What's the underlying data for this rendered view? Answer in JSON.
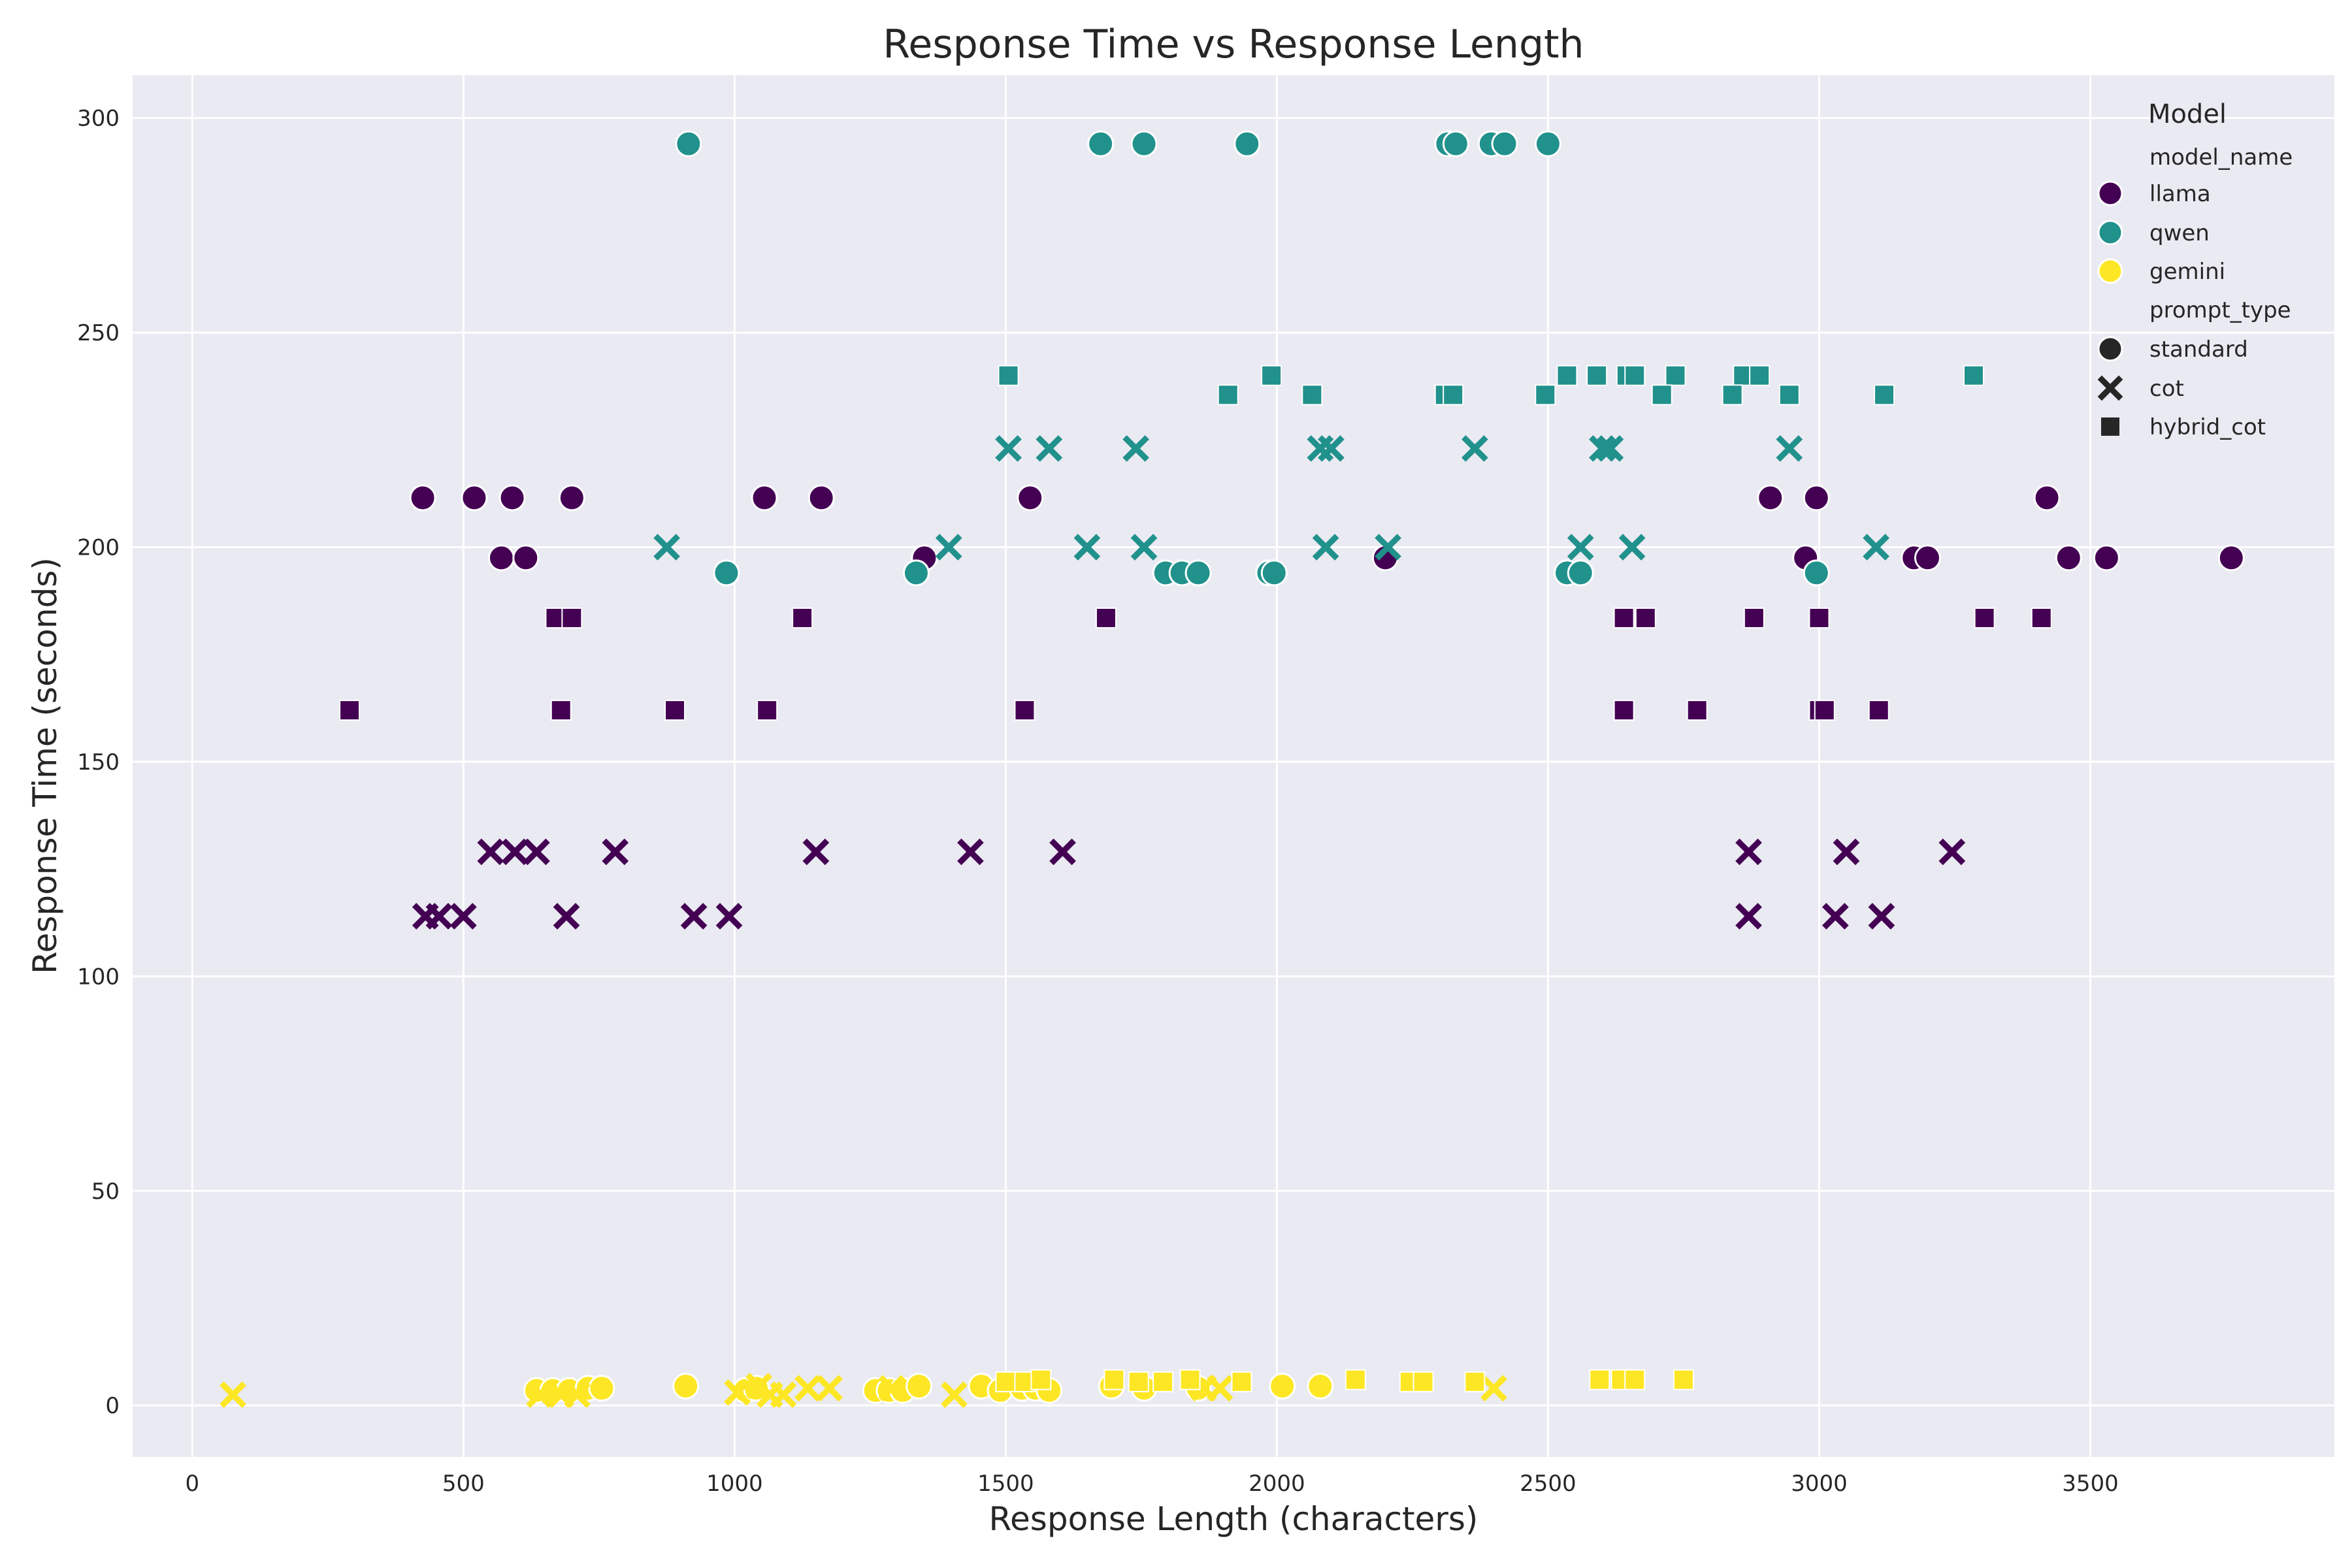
{
  "chart_data": {
    "type": "scatter",
    "title": "Response Time vs Response Length",
    "xlabel": "Response Length (characters)",
    "ylabel": "Response Time (seconds)",
    "xlim": [
      -110,
      3950
    ],
    "ylim": [
      -12,
      310
    ],
    "xticks": [
      0,
      500,
      1000,
      1500,
      2000,
      2500,
      3000,
      3500
    ],
    "yticks": [
      0,
      50,
      100,
      150,
      200,
      250,
      300
    ],
    "grid": true,
    "legend": {
      "title": "Model",
      "placement": "top-right",
      "hue_header": "model_name",
      "style_header": "prompt_type",
      "hue": [
        {
          "name": "llama",
          "color": "#440154"
        },
        {
          "name": "qwen",
          "color": "#21918c"
        },
        {
          "name": "gemini",
          "color": "#fde725"
        }
      ],
      "style": [
        {
          "name": "standard",
          "marker": "circle"
        },
        {
          "name": "cot",
          "marker": "x"
        },
        {
          "name": "hybrid_cot",
          "marker": "square"
        }
      ]
    },
    "series": [
      {
        "model": "llama",
        "prompt_type": "standard",
        "points": [
          [
            425,
            211.5
          ],
          [
            520,
            211.5
          ],
          [
            590,
            211.5
          ],
          [
            700,
            211.5
          ],
          [
            1055,
            211.5
          ],
          [
            1160,
            211.5
          ],
          [
            1545,
            211.5
          ],
          [
            2910,
            211.5
          ],
          [
            2995,
            211.5
          ],
          [
            3420,
            211.5
          ],
          [
            570,
            197.5
          ],
          [
            615,
            197.5
          ],
          [
            1350,
            197.5
          ],
          [
            2200,
            197.5
          ],
          [
            2975,
            197.5
          ],
          [
            3175,
            197.5
          ],
          [
            3200,
            197.5
          ],
          [
            3460,
            197.5
          ],
          [
            3530,
            197.5
          ],
          [
            3760,
            197.5
          ]
        ]
      },
      {
        "model": "llama",
        "prompt_type": "cot",
        "points": [
          [
            550,
            129
          ],
          [
            595,
            129
          ],
          [
            635,
            129
          ],
          [
            780,
            129
          ],
          [
            1150,
            129
          ],
          [
            1435,
            129
          ],
          [
            1605,
            129
          ],
          [
            2870,
            129
          ],
          [
            3050,
            129
          ],
          [
            3245,
            129
          ],
          [
            430,
            114
          ],
          [
            455,
            114
          ],
          [
            500,
            114
          ],
          [
            690,
            114
          ],
          [
            925,
            114
          ],
          [
            990,
            114
          ],
          [
            2870,
            114
          ],
          [
            3030,
            114
          ],
          [
            3115,
            114
          ]
        ]
      },
      {
        "model": "llama",
        "prompt_type": "hybrid_cot",
        "points": [
          [
            670,
            183.5
          ],
          [
            700,
            183.5
          ],
          [
            1125,
            183.5
          ],
          [
            1685,
            183.5
          ],
          [
            2640,
            183.5
          ],
          [
            2680,
            183.5
          ],
          [
            2880,
            183.5
          ],
          [
            3000,
            183.5
          ],
          [
            3305,
            183.5
          ],
          [
            3410,
            183.5
          ],
          [
            290,
            162
          ],
          [
            680,
            162
          ],
          [
            890,
            162
          ],
          [
            1060,
            162
          ],
          [
            1535,
            162
          ],
          [
            2640,
            162
          ],
          [
            2775,
            162
          ],
          [
            3000,
            162
          ],
          [
            3010,
            162
          ],
          [
            3110,
            162
          ]
        ]
      },
      {
        "model": "qwen",
        "prompt_type": "standard",
        "points": [
          [
            915,
            294
          ],
          [
            1675,
            294
          ],
          [
            1755,
            294
          ],
          [
            1945,
            294
          ],
          [
            2315,
            294
          ],
          [
            2330,
            294
          ],
          [
            2395,
            294
          ],
          [
            2420,
            294
          ],
          [
            2500,
            294
          ],
          [
            985,
            194
          ],
          [
            1335,
            194
          ],
          [
            1795,
            194
          ],
          [
            1825,
            194
          ],
          [
            1855,
            194
          ],
          [
            1985,
            194
          ],
          [
            1995,
            194
          ],
          [
            2535,
            194
          ],
          [
            2560,
            194
          ],
          [
            2995,
            194
          ]
        ]
      },
      {
        "model": "qwen",
        "prompt_type": "cot",
        "points": [
          [
            1505,
            223
          ],
          [
            1580,
            223
          ],
          [
            1740,
            223
          ],
          [
            2080,
            223
          ],
          [
            2100,
            223
          ],
          [
            2365,
            223
          ],
          [
            2600,
            223
          ],
          [
            2615,
            223
          ],
          [
            2945,
            223
          ],
          [
            875,
            200
          ],
          [
            1395,
            200
          ],
          [
            1650,
            200
          ],
          [
            1755,
            200
          ],
          [
            2090,
            200
          ],
          [
            2205,
            200
          ],
          [
            2560,
            200
          ],
          [
            2655,
            200
          ],
          [
            3105,
            200
          ]
        ]
      },
      {
        "model": "qwen",
        "prompt_type": "hybrid_cot",
        "points": [
          [
            1505,
            240
          ],
          [
            1990,
            240
          ],
          [
            2535,
            240
          ],
          [
            2590,
            240
          ],
          [
            2645,
            240
          ],
          [
            2660,
            240
          ],
          [
            2735,
            240
          ],
          [
            2860,
            240
          ],
          [
            2890,
            240
          ],
          [
            3285,
            240
          ],
          [
            1910,
            235.5
          ],
          [
            2065,
            235.5
          ],
          [
            2310,
            235.5
          ],
          [
            2325,
            235.5
          ],
          [
            2495,
            235.5
          ],
          [
            2710,
            235.5
          ],
          [
            2840,
            235.5
          ],
          [
            2945,
            235.5
          ],
          [
            3120,
            235.5
          ]
        ]
      },
      {
        "model": "gemini",
        "prompt_type": "standard",
        "points": [
          [
            635,
            3.5
          ],
          [
            665,
            3.5
          ],
          [
            695,
            3.5
          ],
          [
            730,
            4
          ],
          [
            755,
            4
          ],
          [
            910,
            4.5
          ],
          [
            1020,
            3.5
          ],
          [
            1040,
            4
          ],
          [
            1260,
            3.5
          ],
          [
            1285,
            3.5
          ],
          [
            1310,
            3.5
          ],
          [
            1340,
            4.5
          ],
          [
            1455,
            4.5
          ],
          [
            1490,
            3.5
          ],
          [
            1530,
            4
          ],
          [
            1555,
            4
          ],
          [
            1580,
            3.5
          ],
          [
            1695,
            4.5
          ],
          [
            1755,
            4
          ],
          [
            1855,
            4
          ],
          [
            2010,
            4.5
          ],
          [
            2080,
            4.5
          ]
        ]
      },
      {
        "model": "gemini",
        "prompt_type": "cot",
        "points": [
          [
            75,
            2.5
          ],
          [
            640,
            2.5
          ],
          [
            680,
            2.5
          ],
          [
            710,
            2.5
          ],
          [
            1005,
            3
          ],
          [
            1045,
            4.5
          ],
          [
            1065,
            2.5
          ],
          [
            1090,
            2.5
          ],
          [
            1135,
            4
          ],
          [
            1175,
            4
          ],
          [
            1290,
            4
          ],
          [
            1405,
            2.5
          ],
          [
            1865,
            4
          ],
          [
            1895,
            4
          ],
          [
            2400,
            4
          ]
        ]
      },
      {
        "model": "gemini",
        "prompt_type": "hybrid_cot",
        "points": [
          [
            1500,
            5.5
          ],
          [
            1535,
            5.5
          ],
          [
            1565,
            6
          ],
          [
            1700,
            6
          ],
          [
            1745,
            5.5
          ],
          [
            1790,
            5.5
          ],
          [
            1840,
            6
          ],
          [
            1935,
            5.5
          ],
          [
            2145,
            6
          ],
          [
            2245,
            5.5
          ],
          [
            2270,
            5.5
          ],
          [
            2365,
            5.5
          ],
          [
            2595,
            6
          ],
          [
            2635,
            6
          ],
          [
            2660,
            6
          ],
          [
            2750,
            6
          ]
        ]
      }
    ]
  }
}
